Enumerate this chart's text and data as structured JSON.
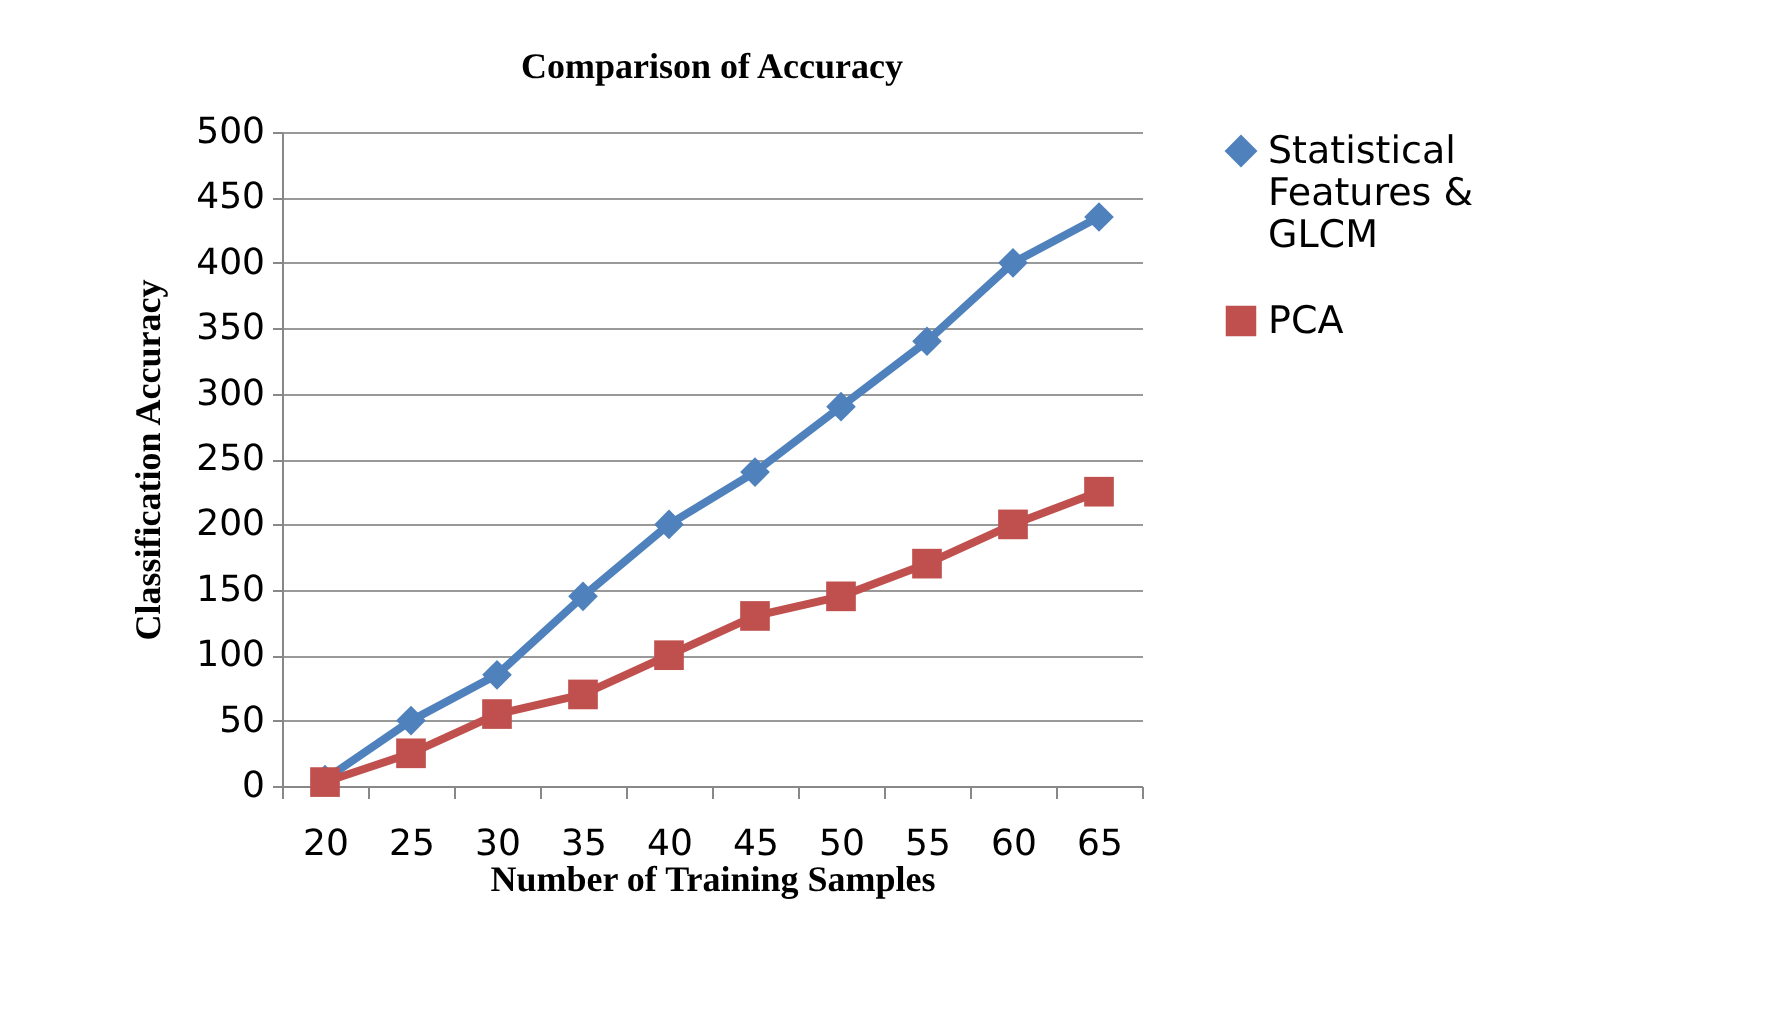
{
  "chart_data": {
    "type": "line",
    "title": "Comparison of Accuracy",
    "xlabel": "Number of Training Samples",
    "ylabel": "Classification Accuracy",
    "categories": [
      "20",
      "25",
      "30",
      "35",
      "40",
      "45",
      "50",
      "55",
      "60",
      "65"
    ],
    "series": [
      {
        "name": "Statistical Features & GLCM",
        "color": "#4f81bd",
        "marker": "diamond",
        "values": [
          5,
          50,
          85,
          145,
          200,
          240,
          290,
          340,
          400,
          435
        ]
      },
      {
        "name": "PCA",
        "color": "#c0504d",
        "marker": "square",
        "values": [
          3,
          25,
          55,
          70,
          100,
          130,
          145,
          170,
          200,
          225
        ]
      }
    ],
    "ylim": [
      0,
      500
    ],
    "yticks": [
      0,
      50,
      100,
      150,
      200,
      250,
      300,
      350,
      400,
      450,
      500
    ],
    "grid": "y",
    "legend": "right",
    "line_style": "solid"
  }
}
